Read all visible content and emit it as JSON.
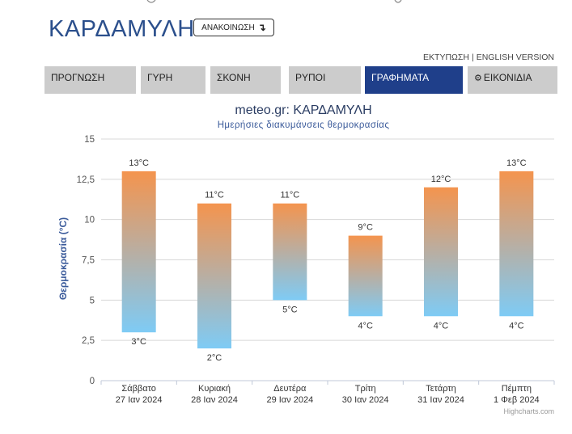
{
  "header": {
    "title": "ΚΑΡΔΑΜΥΛΗ",
    "announce_label": "ΑΝΑΚΟΙΝΩΣΗ",
    "announce_icon": "arrow-down-icon"
  },
  "top_links": {
    "print": "ΕΚΤΥΠΩΣΗ",
    "separator": "|",
    "english": "ENGLISH VERSION"
  },
  "tabs": [
    {
      "label": "ΠΡΟΓΝΩΣΗ",
      "active": false
    },
    {
      "label": "ΓΥΡΗ",
      "active": false
    },
    {
      "label": "ΣΚΟΝΗ",
      "active": false
    },
    {
      "label": "ΡΥΠΟΙ",
      "active": false
    },
    {
      "label": "ΓΡΑΦΗΜΑΤΑ",
      "active": true
    },
    {
      "label": "ΕΙΚΟΝΙΔΙΑ",
      "active": false,
      "icon": "gear-icon"
    }
  ],
  "colors": {
    "brand": "#2b4f8c",
    "active_tab": "#1f3f8a",
    "bar_top": "#f4944e",
    "bar_bottom": "#7ecbf5"
  },
  "chart_data": {
    "type": "bar",
    "subtype": "columnrange",
    "title": "meteo.gr: ΚΑΡΔΑΜΥΛΗ",
    "subtitle": "Ημερήσιες διακυμάνσεις θερμοκρασίας",
    "ylabel": "Θερμοκρασία (°C)",
    "ylim": [
      0,
      15
    ],
    "yticks": [
      "0",
      "2,5",
      "5",
      "7,5",
      "10",
      "12,5",
      "15"
    ],
    "grid": true,
    "categories": [
      {
        "day": "Σάββατο",
        "date": "27 Ιαν 2024"
      },
      {
        "day": "Κυριακή",
        "date": "28 Ιαν 2024"
      },
      {
        "day": "Δευτέρα",
        "date": "29 Ιαν 2024"
      },
      {
        "day": "Τρίτη",
        "date": "30 Ιαν 2024"
      },
      {
        "day": "Τετάρτη",
        "date": "31 Ιαν 2024"
      },
      {
        "day": "Πέμπτη",
        "date": "1 Φεβ 2024"
      }
    ],
    "low": [
      3,
      2,
      5,
      4,
      4,
      4
    ],
    "high": [
      13,
      11,
      11,
      9,
      12,
      13
    ],
    "low_labels": [
      "3°C",
      "2°C",
      "5°C",
      "4°C",
      "4°C",
      "4°C"
    ],
    "high_labels": [
      "13°C",
      "11°C",
      "11°C",
      "9°C",
      "12°C",
      "13°C"
    ],
    "credits": "Highcharts.com"
  }
}
